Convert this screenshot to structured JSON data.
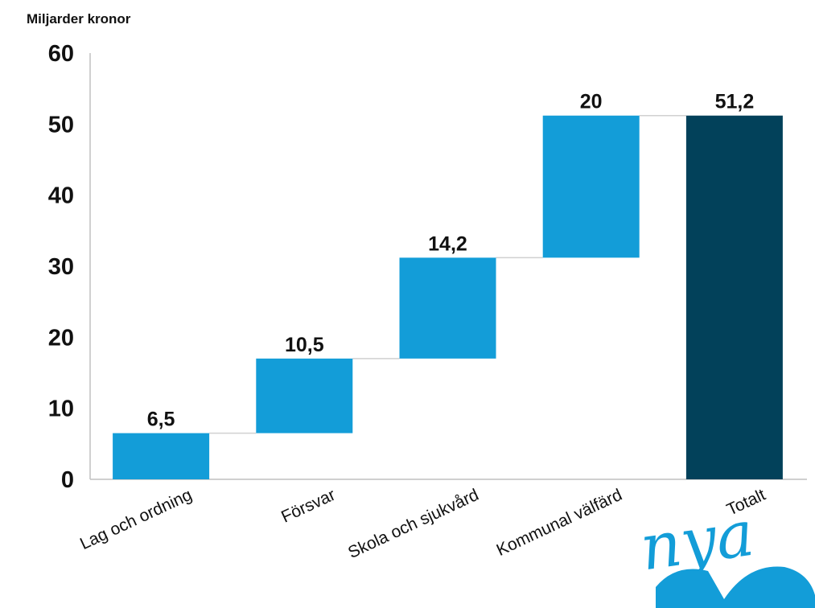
{
  "colors": {
    "step_bar": "#139dd8",
    "total_bar": "#02415a",
    "axis": "#c0c0c0",
    "connector": "#d0d0d0",
    "logo": "#139dd8"
  },
  "chart_data": {
    "type": "bar",
    "subtype": "waterfall",
    "ylabel": "Miljarder kronor",
    "ylim": [
      0,
      60
    ],
    "yticks": [
      0,
      10,
      20,
      30,
      40,
      50,
      60
    ],
    "grid": false,
    "categories": [
      "Lag och ordning",
      "Försvar",
      "Skola och sjukvård",
      "Kommunal välfärd",
      "Totalt"
    ],
    "values": [
      6.5,
      10.5,
      14.2,
      20,
      51.2
    ],
    "data_labels": [
      "6,5",
      "10,5",
      "14,2",
      "20",
      "51,2"
    ],
    "is_total": [
      false,
      false,
      false,
      false,
      true
    ]
  },
  "logo": {
    "text": "nya"
  }
}
